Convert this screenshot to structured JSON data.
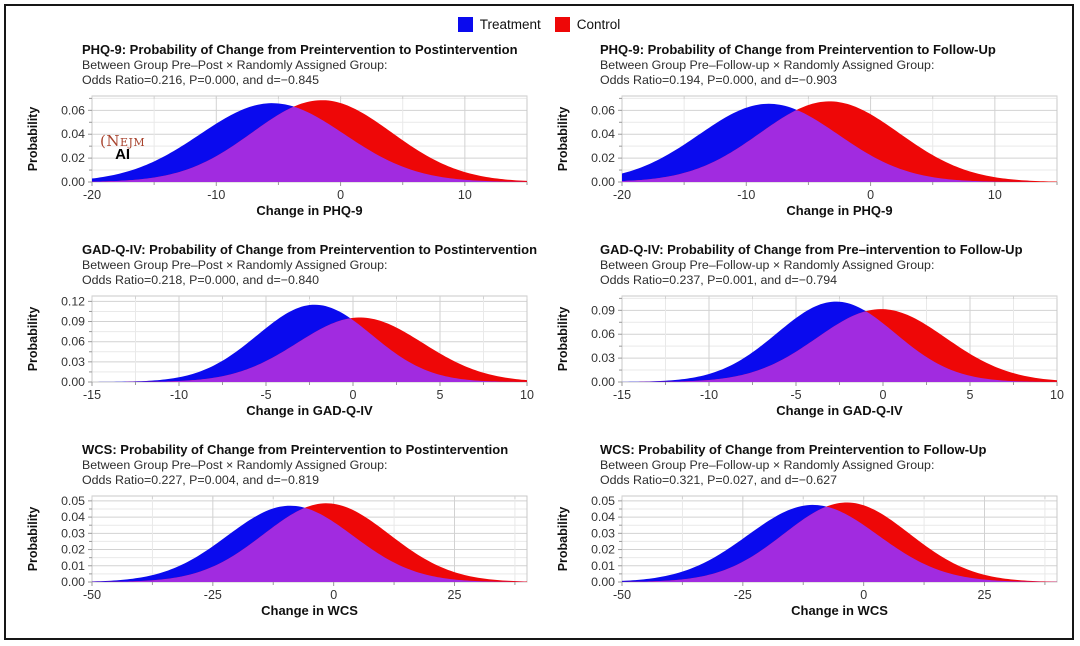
{
  "figure": {
    "legend": {
      "items": [
        {
          "label": "Treatment",
          "color": "#0a0aee"
        },
        {
          "label": "Control",
          "color": "#ee0707"
        }
      ]
    },
    "watermark": {
      "brand": "(Nejm",
      "sub": "AI"
    }
  },
  "colors": {
    "treatment_fill": "#0a0aee",
    "control_fill": "#ee0707",
    "overlap_fill": "#a12be0",
    "grid_major": "#d2d2d2",
    "grid_minor": "#e9e9e9",
    "plot_border": "#c9c9c9",
    "tick": "#9a9a9a",
    "tick_label": "#333333",
    "axis_label": "#101010"
  },
  "chart_data": [
    {
      "type": "area",
      "panel": "phq9-postintervention",
      "title": "PHQ-9: Probability of Change from Preintervention to Postintervention",
      "subtitle": "Between Group Pre–Post × Randomly Assigned Group:",
      "stats_line": "Odds Ratio=0.216, P=0.000, and d=−0.845",
      "stats": {
        "odds_ratio": 0.216,
        "p_value": "0.000",
        "cohens_d": -0.845
      },
      "xlabel": "Change in PHQ-9",
      "ylabel": "Probability",
      "xlim": [
        -20,
        15
      ],
      "ylim": [
        0,
        0.072
      ],
      "xticks": [
        -20,
        -10,
        0,
        10
      ],
      "yticks": [
        0,
        0.02,
        0.04,
        0.06
      ],
      "series": [
        {
          "name": "Treatment",
          "distribution": "normal",
          "mean": -5.5,
          "sd": 5.8,
          "peak_probability": 0.066
        },
        {
          "name": "Control",
          "distribution": "normal",
          "mean": -1.5,
          "sd": 5.6,
          "peak_probability": 0.0685
        }
      ]
    },
    {
      "type": "area",
      "panel": "phq9-followup",
      "title": "PHQ-9: Probability of Change from Preintervention to Follow-Up",
      "subtitle": "Between Group Pre–Follow-up × Randomly Assigned Group:",
      "stats_line": "Odds Ratio=0.194, P=0.000, and d=−0.903",
      "stats": {
        "odds_ratio": 0.194,
        "p_value": "0.000",
        "cohens_d": -0.903
      },
      "xlabel": "Change in PHQ-9",
      "ylabel": "Probability",
      "xlim": [
        -20,
        15
      ],
      "ylim": [
        0,
        0.072
      ],
      "xticks": [
        -20,
        -10,
        0,
        10
      ],
      "yticks": [
        0,
        0.02,
        0.04,
        0.06
      ],
      "series": [
        {
          "name": "Treatment",
          "distribution": "normal",
          "mean": -8.2,
          "sd": 5.6,
          "peak_probability": 0.0655
        },
        {
          "name": "Control",
          "distribution": "normal",
          "mean": -3.3,
          "sd": 5.6,
          "peak_probability": 0.0675
        }
      ]
    },
    {
      "type": "area",
      "panel": "gadqiv-postintervention",
      "title": "GAD-Q-IV: Probability of Change from Preintervention to Postintervention",
      "subtitle": "Between Group Pre–Post × Randomly Assigned Group:",
      "stats_line": "Odds Ratio=0.218, P=0.000, and d=−0.840",
      "stats": {
        "odds_ratio": 0.218,
        "p_value": "0.000",
        "cohens_d": -0.84
      },
      "xlabel": "Change in GAD-Q-IV",
      "ylabel": "Probability",
      "xlim": [
        -15,
        10
      ],
      "ylim": [
        0,
        0.128
      ],
      "xticks": [
        -15,
        -10,
        -5,
        0,
        5,
        10
      ],
      "yticks": [
        0,
        0.03,
        0.06,
        0.09,
        0.12
      ],
      "series": [
        {
          "name": "Treatment",
          "distribution": "normal",
          "mean": -2.2,
          "sd": 3.3,
          "peak_probability": 0.115
        },
        {
          "name": "Control",
          "distribution": "normal",
          "mean": 0.4,
          "sd": 3.6,
          "peak_probability": 0.096
        }
      ]
    },
    {
      "type": "area",
      "panel": "gadqiv-followup",
      "title": "GAD-Q-IV: Probability of Change from Pre–intervention to Follow-Up",
      "subtitle": "Between Group Pre–Follow-up × Randomly Assigned Group:",
      "stats_line": "Odds Ratio=0.237, P=0.001, and d=−0.794",
      "stats": {
        "odds_ratio": 0.237,
        "p_value": "0.001",
        "cohens_d": -0.794
      },
      "xlabel": "Change in GAD-Q-IV",
      "ylabel": "Probability",
      "xlim": [
        -15,
        10
      ],
      "ylim": [
        0,
        0.108
      ],
      "xticks": [
        -15,
        -10,
        -5,
        0,
        5,
        10
      ],
      "yticks": [
        0,
        0.03,
        0.06,
        0.09
      ],
      "series": [
        {
          "name": "Treatment",
          "distribution": "normal",
          "mean": -2.7,
          "sd": 3.4,
          "peak_probability": 0.101
        },
        {
          "name": "Control",
          "distribution": "normal",
          "mean": -0.1,
          "sd": 3.7,
          "peak_probability": 0.0915
        }
      ]
    },
    {
      "type": "area",
      "panel": "wcs-postintervention",
      "title": "WCS: Probability of Change from Preintervention to Postintervention",
      "subtitle": "Between Group Pre–Post × Randomly Assigned Group:",
      "stats_line": "Odds Ratio=0.227, P=0.004, and d=−0.819",
      "stats": {
        "odds_ratio": 0.227,
        "p_value": "0.004",
        "cohens_d": -0.819
      },
      "xlabel": "Change in WCS",
      "ylabel": "Probability",
      "xlim": [
        -50,
        40
      ],
      "ylim": [
        0,
        0.053
      ],
      "xticks": [
        -50,
        -25,
        0,
        25
      ],
      "yticks": [
        0,
        0.01,
        0.02,
        0.03,
        0.04,
        0.05
      ],
      "series": [
        {
          "name": "Treatment",
          "distribution": "normal",
          "mean": -9,
          "sd": 13,
          "peak_probability": 0.047
        },
        {
          "name": "Control",
          "distribution": "normal",
          "mean": -1.5,
          "sd": 13,
          "peak_probability": 0.0485
        }
      ]
    },
    {
      "type": "area",
      "panel": "wcs-followup",
      "title": "WCS: Probability of Change from Preintervention to Follow-Up",
      "subtitle": "Between Group Pre–Follow-up × Randomly Assigned Group:",
      "stats_line": "Odds Ratio=0.321, P=0.027, and d=−0.627",
      "stats": {
        "odds_ratio": 0.321,
        "p_value": "0.027",
        "cohens_d": -0.627
      },
      "xlabel": "Change in WCS",
      "ylabel": "Probability",
      "xlim": [
        -50,
        40
      ],
      "ylim": [
        0,
        0.053
      ],
      "xticks": [
        -50,
        -25,
        0,
        25
      ],
      "yticks": [
        0,
        0.01,
        0.02,
        0.03,
        0.04,
        0.05
      ],
      "series": [
        {
          "name": "Treatment",
          "distribution": "normal",
          "mean": -10.5,
          "sd": 13.5,
          "peak_probability": 0.0475
        },
        {
          "name": "Control",
          "distribution": "normal",
          "mean": -3.5,
          "sd": 13,
          "peak_probability": 0.049
        }
      ]
    }
  ]
}
